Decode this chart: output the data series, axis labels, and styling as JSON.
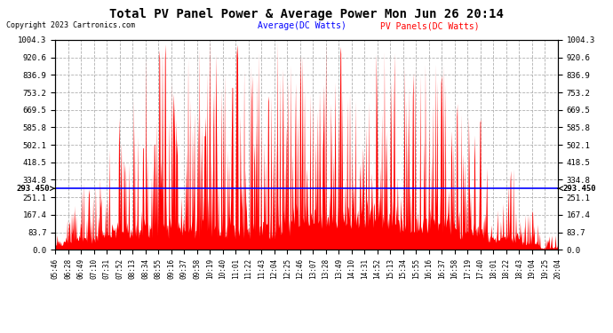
{
  "title": "Total PV Panel Power & Average Power Mon Jun 26 20:14",
  "copyright": "Copyright 2023 Cartronics.com",
  "legend_avg": "Average(DC Watts)",
  "legend_pv": "PV Panels(DC Watts)",
  "avg_value": 293.45,
  "avg_label": "293.450",
  "ymin": 0.0,
  "ymax": 1004.3,
  "yticks": [
    0.0,
    83.7,
    167.4,
    251.1,
    334.8,
    418.5,
    502.1,
    585.8,
    669.5,
    753.2,
    836.9,
    920.6,
    1004.3
  ],
  "bg_color": "#ffffff",
  "grid_color": "#b0b0b0",
  "bar_color": "#ff0000",
  "avg_line_color": "#0000ff",
  "title_color": "#000000",
  "copyright_color": "#000000",
  "legend_avg_color": "#0000ff",
  "legend_pv_color": "#ff0000",
  "x_labels": [
    "05:46",
    "06:28",
    "06:49",
    "07:10",
    "07:31",
    "07:52",
    "08:13",
    "08:34",
    "08:55",
    "09:16",
    "09:37",
    "09:58",
    "10:19",
    "10:40",
    "11:01",
    "11:22",
    "11:43",
    "12:04",
    "12:25",
    "12:46",
    "13:07",
    "13:28",
    "13:49",
    "14:10",
    "14:31",
    "14:52",
    "15:13",
    "15:34",
    "15:55",
    "16:16",
    "16:37",
    "16:58",
    "17:19",
    "17:40",
    "18:01",
    "18:22",
    "18:43",
    "19:04",
    "19:25",
    "20:04"
  ]
}
